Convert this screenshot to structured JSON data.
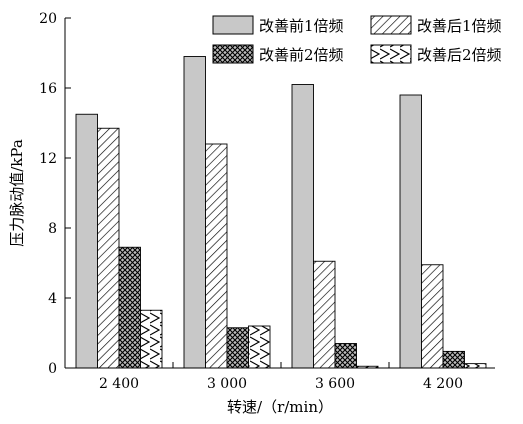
{
  "chart_data": {
    "type": "bar",
    "xlabel": "转速/（r/min）",
    "ylabel": "压力脉动值/kPa",
    "ylim": [
      0,
      20
    ],
    "yticks": [
      0,
      4,
      8,
      12,
      16,
      20
    ],
    "categories": [
      "2 400",
      "3 000",
      "3 600",
      "4 200"
    ],
    "series": [
      {
        "name": "改善前1倍频",
        "values": [
          14.5,
          17.8,
          16.2,
          15.6
        ]
      },
      {
        "name": "改善后1倍频",
        "values": [
          13.7,
          12.8,
          6.1,
          5.9
        ]
      },
      {
        "name": "改善前2倍频",
        "values": [
          6.9,
          2.3,
          1.4,
          0.95
        ]
      },
      {
        "name": "改善后2倍频",
        "values": [
          3.3,
          2.4,
          0.1,
          0.25
        ]
      }
    ],
    "legend_position": "top-right"
  }
}
